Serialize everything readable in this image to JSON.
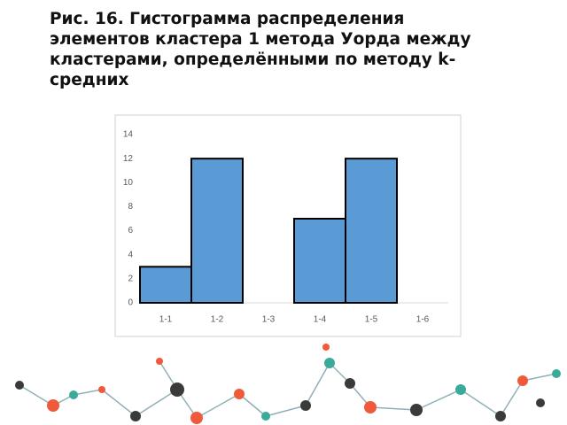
{
  "chart_data": {
    "type": "bar",
    "title": "Рис. 16. Гистограмма распределения элементов кластера 1 метода Уорда между кластерами, определёнными по методу k-средних",
    "categories": [
      "1-1",
      "1-2",
      "1-3",
      "1-4",
      "1-5",
      "1-6"
    ],
    "values": [
      3,
      12,
      0,
      7,
      12,
      0
    ],
    "color": "#5b9bd5",
    "ylim": [
      0,
      14
    ],
    "yticks": [
      0,
      2,
      4,
      6,
      8,
      10,
      12,
      14
    ],
    "grid": false
  }
}
